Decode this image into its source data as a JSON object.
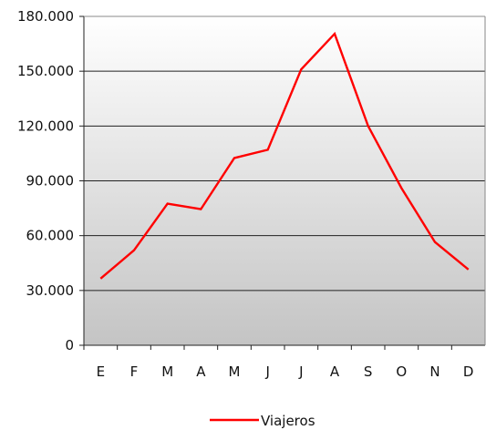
{
  "chart_data": {
    "type": "line",
    "title": "",
    "xlabel": "",
    "ylabel": "",
    "categories": [
      "E",
      "F",
      "M",
      "A",
      "M",
      "J",
      "J",
      "A",
      "S",
      "O",
      "N",
      "D"
    ],
    "series": [
      {
        "name": "Viajeros",
        "color": "#ff0000",
        "values": [
          36500,
          52000,
          77500,
          74500,
          102500,
          107000,
          151000,
          170500,
          120000,
          86000,
          56500,
          41500
        ]
      }
    ],
    "ylim": [
      0,
      180000
    ],
    "yticks": [
      0,
      30000,
      60000,
      90000,
      120000,
      150000,
      180000
    ],
    "ytick_labels": [
      "0",
      "30.000",
      "60.000",
      "90.000",
      "120.000",
      "150.000",
      "180.000"
    ],
    "grid": true,
    "legend_position": "bottom"
  }
}
